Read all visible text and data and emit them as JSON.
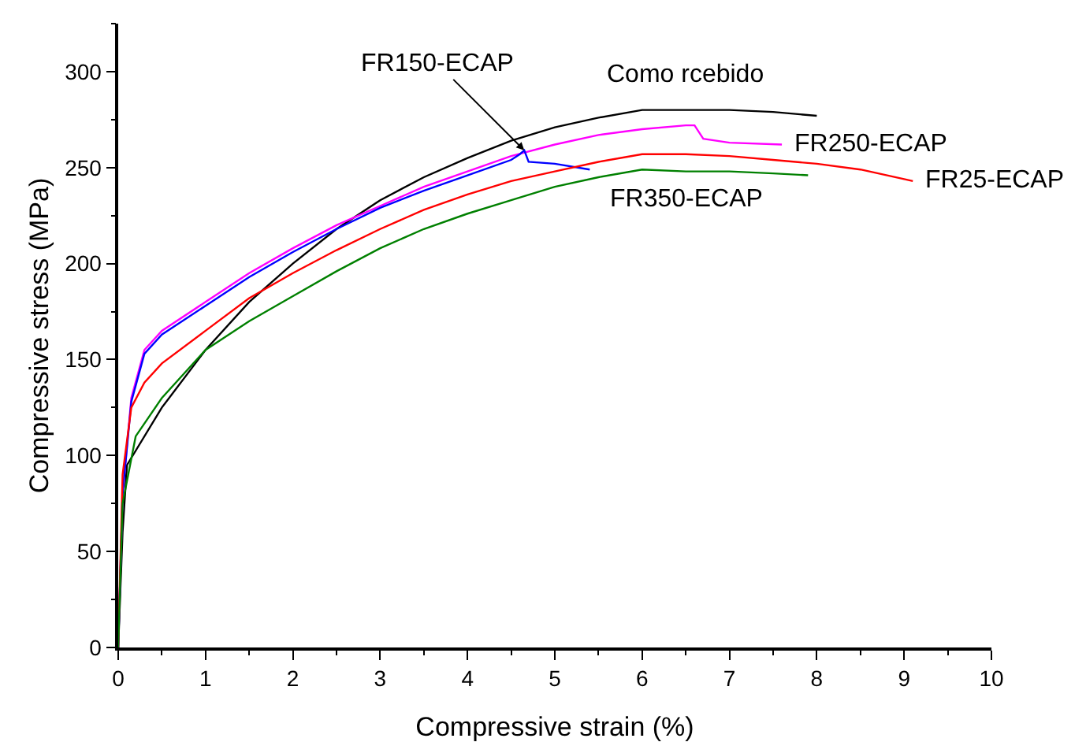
{
  "chart_data": {
    "type": "line",
    "xlabel": "Compressive strain (%)",
    "ylabel": "Compressive stress (MPa)",
    "xlim": [
      0,
      10
    ],
    "ylim": [
      0,
      325
    ],
    "xticks": [
      0,
      1,
      2,
      3,
      4,
      5,
      6,
      7,
      8,
      9,
      10
    ],
    "yticks": [
      0,
      50,
      100,
      150,
      200,
      250,
      300
    ],
    "grid": false,
    "legend": false,
    "marker": "none",
    "line_style": "solid",
    "series": [
      {
        "name": "Como rcebido",
        "color": "#000000",
        "x": [
          0,
          0.05,
          0.1,
          0.5,
          1,
          1.5,
          2,
          2.5,
          3,
          3.5,
          4,
          4.5,
          5,
          5.5,
          6,
          6.5,
          7,
          7.5,
          8
        ],
        "values": [
          0,
          60,
          95,
          125,
          155,
          180,
          200,
          218,
          233,
          245,
          255,
          264,
          271,
          276,
          280,
          280,
          280,
          279,
          277
        ]
      },
      {
        "name": "FR250-ECAP",
        "color": "#ff00ff",
        "x": [
          0,
          0.05,
          0.15,
          0.3,
          0.5,
          1,
          1.5,
          2,
          2.5,
          3,
          3.5,
          4,
          4.5,
          5,
          5.5,
          6,
          6.5,
          6.6,
          6.7,
          7,
          7.6
        ],
        "values": [
          0,
          80,
          130,
          155,
          165,
          180,
          195,
          208,
          220,
          230,
          240,
          248,
          256,
          262,
          267,
          270,
          272,
          272,
          265,
          263,
          262
        ]
      },
      {
        "name": "FR150-ECAP",
        "color": "#0000ff",
        "x": [
          0,
          0.05,
          0.15,
          0.3,
          0.5,
          1,
          1.5,
          2,
          2.5,
          3,
          3.5,
          4,
          4.5,
          4.6,
          4.65,
          4.7,
          5,
          5.4
        ],
        "values": [
          0,
          80,
          128,
          153,
          163,
          178,
          193,
          206,
          218,
          229,
          238,
          246,
          254,
          257,
          259,
          253,
          252,
          249
        ]
      },
      {
        "name": "FR25-ECAP",
        "color": "#ff0000",
        "x": [
          0,
          0.05,
          0.15,
          0.3,
          0.5,
          1,
          1.5,
          2,
          2.5,
          3,
          3.5,
          4,
          4.5,
          5,
          5.5,
          6,
          6.5,
          7,
          7.5,
          8,
          8.5,
          9,
          9.1
        ],
        "values": [
          0,
          90,
          125,
          138,
          148,
          165,
          182,
          195,
          207,
          218,
          228,
          236,
          243,
          248,
          253,
          257,
          257,
          256,
          254,
          252,
          249,
          244,
          243
        ]
      },
      {
        "name": "FR350-ECAP",
        "color": "#008000",
        "x": [
          0,
          0.05,
          0.2,
          0.5,
          1,
          1.5,
          2,
          2.5,
          3,
          3.5,
          4,
          4.5,
          5,
          5.5,
          6,
          6.5,
          7,
          7.5,
          7.9
        ],
        "values": [
          0,
          75,
          110,
          130,
          155,
          170,
          183,
          196,
          208,
          218,
          226,
          233,
          240,
          245,
          249,
          248,
          248,
          247,
          246
        ]
      }
    ]
  }
}
